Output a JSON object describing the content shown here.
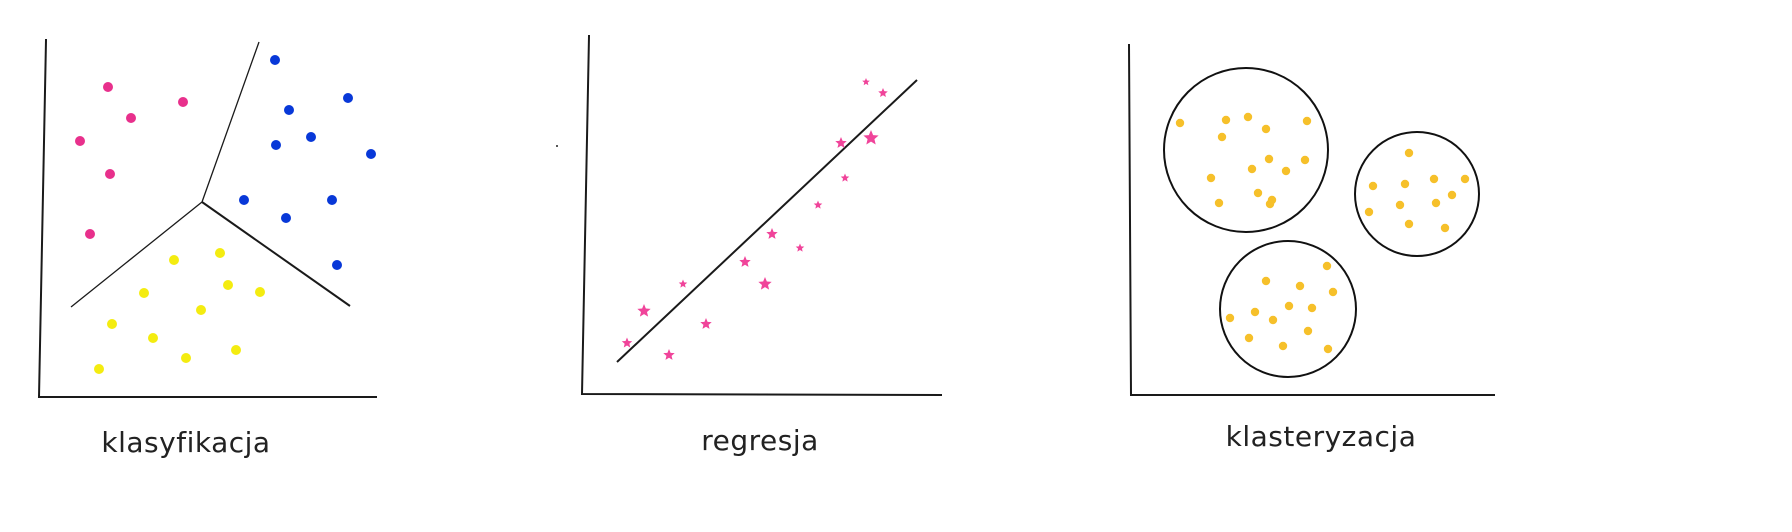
{
  "panels": {
    "classification": {
      "caption": "klasyfikacja",
      "classes": [
        {
          "color": "#e8308c",
          "points": [
            [
              108,
              87
            ],
            [
              183,
              102
            ],
            [
              131,
              118
            ],
            [
              80,
              141
            ],
            [
              110,
              174
            ],
            [
              90,
              234
            ]
          ]
        },
        {
          "color": "#0838d8",
          "points": [
            [
              275,
              60
            ],
            [
              348,
              98
            ],
            [
              289,
              110
            ],
            [
              311,
              137
            ],
            [
              276,
              145
            ],
            [
              371,
              154
            ],
            [
              244,
              200
            ],
            [
              332,
              200
            ],
            [
              286,
              218
            ],
            [
              337,
              265
            ]
          ]
        },
        {
          "color": "#f4ec10",
          "points": [
            [
              220,
              253
            ],
            [
              174,
              260
            ],
            [
              228,
              285
            ],
            [
              144,
              293
            ],
            [
              260,
              292
            ],
            [
              201,
              310
            ],
            [
              112,
              324
            ],
            [
              153,
              338
            ],
            [
              236,
              350
            ],
            [
              186,
              358
            ],
            [
              99,
              369
            ]
          ]
        }
      ]
    },
    "regression": {
      "caption": "regresja",
      "color": "#f0449a",
      "points": [
        [
          866,
          82,
          4
        ],
        [
          883,
          93,
          5
        ],
        [
          871,
          138,
          8
        ],
        [
          841,
          143,
          6
        ],
        [
          845,
          178,
          4.5
        ],
        [
          818,
          205,
          4.5
        ],
        [
          772,
          234,
          6
        ],
        [
          800,
          248,
          4.5
        ],
        [
          745,
          262,
          6
        ],
        [
          765,
          284,
          7
        ],
        [
          683,
          284,
          4.5
        ],
        [
          644,
          311,
          7
        ],
        [
          706,
          324,
          6
        ],
        [
          627,
          343,
          5.5
        ],
        [
          669,
          355,
          6
        ]
      ]
    },
    "clustering": {
      "caption": "klasteryzacja",
      "color": "#f6c02a",
      "clusters": [
        {
          "points": [
            [
              1180,
              123
            ],
            [
              1226,
              120
            ],
            [
              1248,
              117
            ],
            [
              1307,
              121
            ],
            [
              1266,
              129
            ],
            [
              1222,
              137
            ],
            [
              1269,
              159
            ],
            [
              1305,
              160
            ],
            [
              1252,
              169
            ],
            [
              1286,
              171
            ],
            [
              1211,
              178
            ],
            [
              1258,
              193
            ],
            [
              1219,
              203
            ],
            [
              1272,
              200
            ],
            [
              1270,
              204
            ]
          ]
        },
        {
          "points": [
            [
              1409,
              153
            ],
            [
              1373,
              186
            ],
            [
              1405,
              184
            ],
            [
              1434,
              179
            ],
            [
              1465,
              179
            ],
            [
              1452,
              195
            ],
            [
              1400,
              205
            ],
            [
              1436,
              203
            ],
            [
              1369,
              212
            ],
            [
              1409,
              224
            ],
            [
              1445,
              228
            ]
          ]
        },
        {
          "points": [
            [
              1327,
              266
            ],
            [
              1266,
              281
            ],
            [
              1300,
              286
            ],
            [
              1333,
              292
            ],
            [
              1255,
              312
            ],
            [
              1289,
              306
            ],
            [
              1312,
              308
            ],
            [
              1230,
              318
            ],
            [
              1273,
              320
            ],
            [
              1308,
              331
            ],
            [
              1249,
              338
            ],
            [
              1283,
              346
            ],
            [
              1328,
              349
            ]
          ]
        }
      ]
    }
  }
}
